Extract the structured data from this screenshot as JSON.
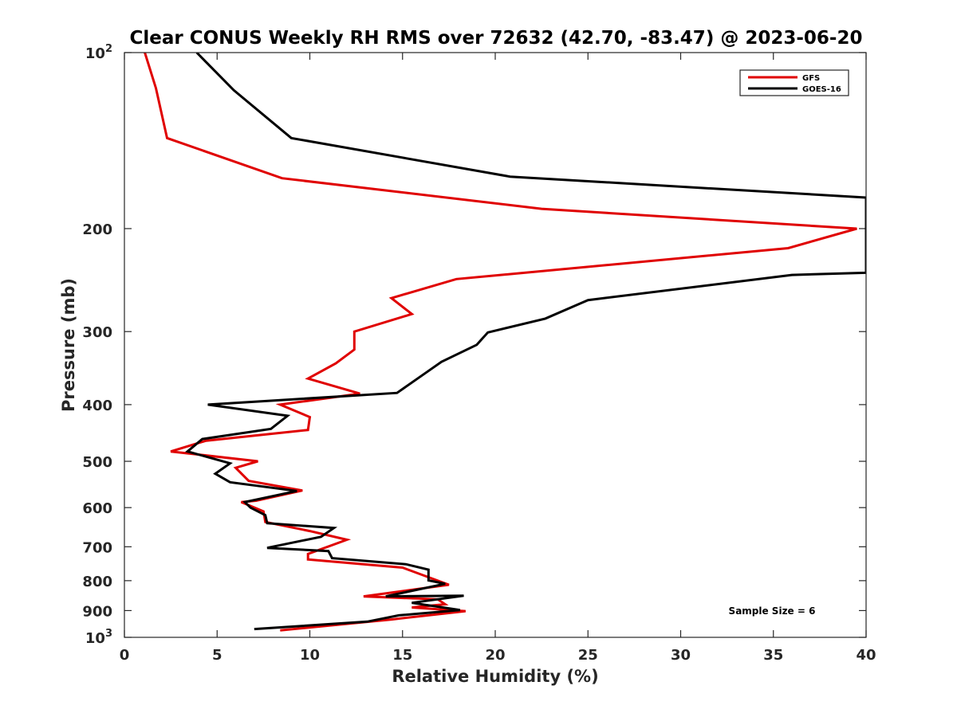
{
  "chart_data": {
    "type": "line",
    "title": "Clear CONUS Weekly RH RMS over 72632 (42.70, -83.47) @ 2023-06-20",
    "xlabel": "Relative Humidity (%)",
    "ylabel": "Pressure (mb)",
    "xlim": [
      0,
      40
    ],
    "ylim": [
      100,
      1000
    ],
    "y_scale": "log",
    "y_reversed": true,
    "x_ticks": [
      "0",
      "5",
      "10",
      "15",
      "20",
      "25",
      "30",
      "35",
      "40"
    ],
    "y_ticks": [
      {
        "value": 100,
        "label": "10",
        "sup": "2"
      },
      {
        "value": 200,
        "label": "200",
        "sup": ""
      },
      {
        "value": 300,
        "label": "300",
        "sup": ""
      },
      {
        "value": 400,
        "label": "400",
        "sup": ""
      },
      {
        "value": 500,
        "label": "500",
        "sup": ""
      },
      {
        "value": 600,
        "label": "600",
        "sup": ""
      },
      {
        "value": 700,
        "label": "700",
        "sup": ""
      },
      {
        "value": 800,
        "label": "800",
        "sup": ""
      },
      {
        "value": 900,
        "label": "900",
        "sup": ""
      },
      {
        "value": 1000,
        "label": "10",
        "sup": "3"
      }
    ],
    "grid": false,
    "legend_position": "top-right",
    "annotation": "Sample Size = 6",
    "series": [
      {
        "name": "GFS",
        "color": "#e00000",
        "points": [
          [
            1.1,
            100
          ],
          [
            1.7,
            115
          ],
          [
            2.3,
            140
          ],
          [
            8.5,
            164
          ],
          [
            22.5,
            185
          ],
          [
            39.5,
            200
          ],
          [
            35.8,
            216
          ],
          [
            17.9,
            244
          ],
          [
            14.4,
            263
          ],
          [
            15.5,
            280
          ],
          [
            12.4,
            300
          ],
          [
            12.4,
            322
          ],
          [
            11.4,
            340
          ],
          [
            9.9,
            361
          ],
          [
            12.7,
            383
          ],
          [
            8.4,
            400
          ],
          [
            10.0,
            420
          ],
          [
            9.9,
            442
          ],
          [
            4.4,
            461
          ],
          [
            2.5,
            481
          ],
          [
            7.2,
            500
          ],
          [
            6.0,
            513
          ],
          [
            6.7,
            540
          ],
          [
            9.6,
            561
          ],
          [
            7.1,
            584
          ],
          [
            6.3,
            587
          ],
          [
            7.5,
            609
          ],
          [
            7.6,
            635
          ],
          [
            10.0,
            658
          ],
          [
            12.0,
            681
          ],
          [
            9.9,
            720
          ],
          [
            9.9,
            736
          ],
          [
            15.0,
            760
          ],
          [
            17.5,
            813
          ],
          [
            12.9,
            851
          ],
          [
            16.9,
            861
          ],
          [
            17.3,
            878
          ],
          [
            15.5,
            889
          ],
          [
            18.4,
            902
          ],
          [
            14.4,
            932
          ],
          [
            8.4,
            973
          ]
        ]
      },
      {
        "name": "GOES-16",
        "color": "#000000",
        "points": [
          [
            3.9,
            100
          ],
          [
            5.9,
            116
          ],
          [
            9.0,
            140
          ],
          [
            20.8,
            163
          ],
          [
            40.0,
            177
          ],
          [
            40.0,
            238
          ],
          [
            36.0,
            240
          ],
          [
            25.0,
            265
          ],
          [
            22.7,
            285
          ],
          [
            19.6,
            301
          ],
          [
            19.0,
            316
          ],
          [
            17.1,
            338
          ],
          [
            16.3,
            352
          ],
          [
            14.7,
            382
          ],
          [
            4.5,
            400
          ],
          [
            8.8,
            418
          ],
          [
            7.9,
            440
          ],
          [
            4.2,
            458
          ],
          [
            3.4,
            481
          ],
          [
            5.7,
            504
          ],
          [
            4.9,
            525
          ],
          [
            5.7,
            543
          ],
          [
            9.3,
            562
          ],
          [
            6.5,
            587
          ],
          [
            6.8,
            600
          ],
          [
            7.6,
            618
          ],
          [
            7.7,
            638
          ],
          [
            11.3,
            650
          ],
          [
            10.6,
            673
          ],
          [
            7.7,
            703
          ],
          [
            11.0,
            712
          ],
          [
            11.2,
            732
          ],
          [
            15.2,
            750
          ],
          [
            16.4,
            766
          ],
          [
            16.4,
            799
          ],
          [
            17.3,
            810
          ],
          [
            14.1,
            851
          ],
          [
            18.3,
            849
          ],
          [
            15.5,
            873
          ],
          [
            18.1,
            898
          ],
          [
            14.8,
            917
          ],
          [
            13.1,
            940
          ],
          [
            7.0,
            968
          ]
        ]
      }
    ]
  }
}
